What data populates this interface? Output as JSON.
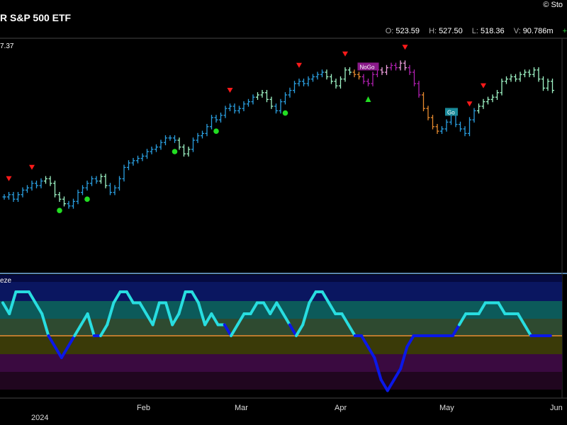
{
  "header": {
    "title": "R S&P 500 ETF",
    "copyright": "© Sto"
  },
  "ohlc": {
    "o_label": "O:",
    "o": "523.59",
    "h_label": "H:",
    "h": "527.50",
    "l_label": "L:",
    "l": "518.36",
    "v_label": "V:",
    "v": "90.786m",
    "chg": "+"
  },
  "last_value_label": "7.37",
  "oscillator_title": "eze",
  "colors": {
    "go_blue": "#2a9fe0",
    "go_light": "#9ff5c6",
    "nogo_purple": "#b020b0",
    "nogo_pink": "#f0a0e0",
    "orange": "#e88a2e",
    "green_dot": "#22dd22",
    "red_triangle": "#ff1a1a",
    "osc_cyan": "#28dde0",
    "osc_blue": "#0a18e8",
    "zero_line": "#e88a2e"
  },
  "chart_data": [
    {
      "type": "ohlc",
      "title": "",
      "x_ticks": [
        "Feb",
        "Mar",
        "Apr",
        "May",
        "Jun"
      ],
      "x_year": "2024",
      "closes": [
        475,
        476,
        474,
        476,
        478,
        479,
        481,
        480,
        482,
        483,
        481,
        476,
        474,
        472,
        471,
        473,
        477,
        479,
        481,
        483,
        482,
        484,
        480,
        477,
        479,
        483,
        488,
        490,
        491,
        492,
        493,
        495,
        496,
        497,
        499,
        501,
        501,
        500,
        497,
        494,
        496,
        500,
        502,
        503,
        506,
        510,
        509,
        511,
        514,
        515,
        513,
        514,
        516,
        517,
        519,
        520,
        521,
        518,
        515,
        513,
        517,
        520,
        522,
        525,
        526,
        525,
        527,
        528,
        529,
        530,
        528,
        526,
        524,
        527,
        531,
        530,
        529,
        528,
        526,
        525,
        529,
        531,
        530,
        532,
        533,
        532,
        534,
        532,
        530,
        525,
        520,
        514,
        510,
        506,
        504,
        505,
        508,
        511,
        507,
        505,
        503,
        509,
        513,
        515,
        517,
        518,
        519,
        521,
        526,
        527,
        528,
        527,
        529,
        530,
        529,
        531,
        527,
        523,
        526,
        522
      ],
      "bar_colors": [
        "go_blue",
        "go_blue",
        "go_blue",
        "go_blue",
        "go_blue",
        "go_blue",
        "go_blue",
        "go_blue",
        "go_blue",
        "go_light",
        "go_light",
        "go_light",
        "go_light",
        "go_light",
        "go_blue",
        "go_blue",
        "go_blue",
        "go_blue",
        "go_blue",
        "go_blue",
        "go_blue",
        "go_light",
        "go_light",
        "go_blue",
        "go_blue",
        "go_blue",
        "go_blue",
        "go_blue",
        "go_blue",
        "go_blue",
        "go_blue",
        "go_blue",
        "go_blue",
        "go_blue",
        "go_blue",
        "go_blue",
        "go_blue",
        "go_blue",
        "go_light",
        "go_light",
        "go_light",
        "go_blue",
        "go_blue",
        "go_blue",
        "go_blue",
        "go_blue",
        "go_blue",
        "go_blue",
        "go_blue",
        "go_blue",
        "go_blue",
        "go_blue",
        "go_blue",
        "go_blue",
        "go_blue",
        "go_light",
        "go_light",
        "go_light",
        "go_light",
        "go_blue",
        "go_blue",
        "go_blue",
        "go_blue",
        "go_blue",
        "go_blue",
        "go_blue",
        "go_blue",
        "go_blue",
        "go_blue",
        "go_blue",
        "go_light",
        "go_light",
        "go_light",
        "go_light",
        "go_light",
        "go_light",
        "orange",
        "orange",
        "nogo_purple",
        "nogo_purple",
        "nogo_purple",
        "nogo_purple",
        "nogo_pink",
        "nogo_pink",
        "nogo_purple",
        "nogo_purple",
        "nogo_pink",
        "nogo_pink",
        "nogo_purple",
        "nogo_purple",
        "nogo_purple",
        "orange",
        "orange",
        "orange",
        "orange",
        "go_blue",
        "go_blue",
        "go_blue",
        "go_blue",
        "go_blue",
        "go_blue",
        "go_blue",
        "go_blue",
        "go_light",
        "go_light",
        "go_light",
        "go_light",
        "go_light",
        "go_light",
        "go_light",
        "go_light",
        "go_light",
        "go_light",
        "go_light",
        "go_light",
        "go_light",
        "go_light",
        "go_light",
        "go_light",
        "go_light"
      ],
      "red_triangle_bars": [
        1,
        6,
        49,
        64,
        74,
        87,
        101,
        104
      ],
      "green_dot_bars": [
        12,
        18,
        37,
        46,
        61
      ],
      "green_triangle_bars": [
        79
      ],
      "labels": [
        {
          "text": "NoGo",
          "bar": 77
        },
        {
          "text": "Go",
          "bar": 96
        }
      ],
      "last_value": "7.37"
    },
    {
      "type": "line",
      "title": "eze",
      "zero_line": 0,
      "values": [
        3,
        2,
        4,
        4,
        4,
        3,
        2,
        0,
        -1,
        -2,
        -1,
        0,
        1,
        2,
        0,
        0,
        1,
        3,
        4,
        4,
        3,
        3,
        2,
        1,
        3,
        3,
        1,
        2,
        4,
        4,
        3,
        1,
        2,
        1,
        1,
        0,
        1,
        2,
        2,
        3,
        3,
        2,
        3,
        2,
        1,
        0,
        1,
        3,
        4,
        4,
        3,
        2,
        2,
        1,
        0,
        0,
        -1,
        -2,
        -4,
        -5,
        -4,
        -3,
        -1,
        0,
        0,
        0,
        0,
        0,
        0,
        0,
        1,
        2,
        2,
        2,
        3,
        3,
        3,
        2,
        2,
        2,
        1,
        0,
        0,
        0,
        0
      ]
    }
  ]
}
